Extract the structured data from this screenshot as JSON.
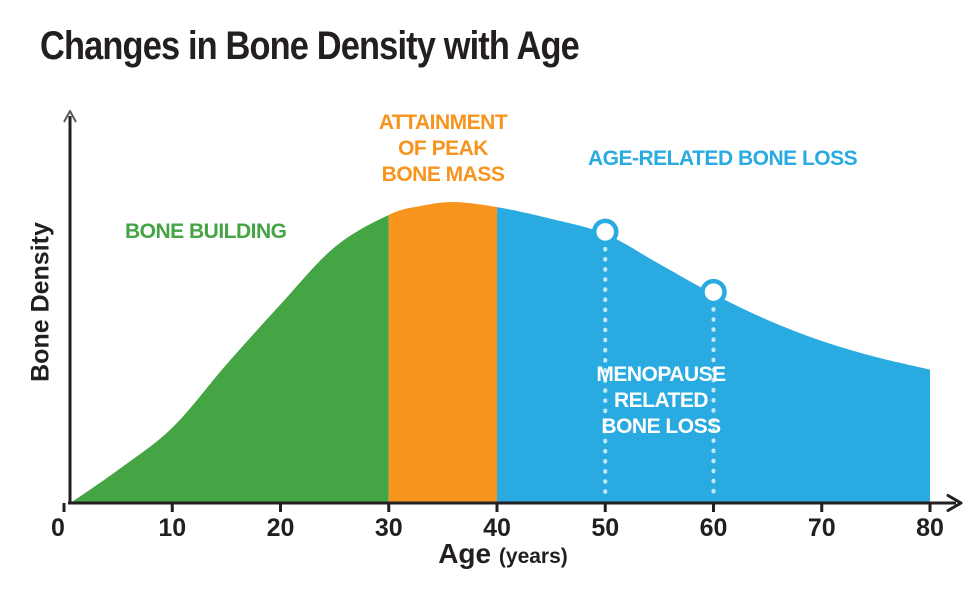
{
  "title": "Changes in Bone Density with Age",
  "colors": {
    "green": "#45A545",
    "orange": "#F7941E",
    "blue": "#29ABE2",
    "ink": "#231F20",
    "white": "#FFFFFF",
    "dotted_line": "rgba(255,255,255,0.72)"
  },
  "labels": {
    "bone_building": "BONE BUILDING",
    "peak_line1": "ATTAINMENT",
    "peak_line2": "OF PEAK",
    "peak_line3": "BONE MASS",
    "age_related": "AGE-RELATED BONE LOSS",
    "menopause_line1": "MENOPAUSE",
    "menopause_line2": "RELATED",
    "menopause_line3": "BONE LOSS",
    "ylabel": "Bone Density",
    "xlabel_main": "Age",
    "xlabel_unit": "(years)"
  },
  "chart_data": {
    "type": "area",
    "title": "Changes in Bone Density with Age",
    "xlabel": "Age (years)",
    "ylabel": "Bone Density",
    "x_ticks": [
      0,
      10,
      20,
      30,
      40,
      50,
      60,
      70,
      80
    ],
    "xlim": [
      0,
      80
    ],
    "ylim_relative_density": [
      0,
      100
    ],
    "grid": false,
    "y_axis_numeric": false,
    "curve": [
      {
        "age": 0.6,
        "density": 0
      },
      {
        "age": 5,
        "density": 11
      },
      {
        "age": 10,
        "density": 25
      },
      {
        "age": 15,
        "density": 46
      },
      {
        "age": 20,
        "density": 66
      },
      {
        "age": 25,
        "density": 85
      },
      {
        "age": 30,
        "density": 95.7
      },
      {
        "age": 33,
        "density": 98.7
      },
      {
        "age": 36,
        "density": 100
      },
      {
        "age": 40,
        "density": 98.3
      },
      {
        "age": 45,
        "density": 94.4
      },
      {
        "age": 50,
        "density": 89.4
      },
      {
        "age": 55,
        "density": 79.4
      },
      {
        "age": 60,
        "density": 69.4
      },
      {
        "age": 65,
        "density": 60.8
      },
      {
        "age": 70,
        "density": 53.8
      },
      {
        "age": 75,
        "density": 48.5
      },
      {
        "age": 80,
        "density": 44.3
      }
    ],
    "segments": [
      {
        "name": "bone-building",
        "label": "BONE BUILDING",
        "age_range": [
          0,
          30
        ],
        "color": "#45A545"
      },
      {
        "name": "peak-bone-mass",
        "label": "ATTAINMENT OF PEAK BONE MASS",
        "age_range": [
          30,
          40
        ],
        "color": "#F7941E"
      },
      {
        "name": "age-related-loss",
        "label": "AGE-RELATED BONE LOSS",
        "age_range": [
          40,
          80
        ],
        "color": "#29ABE2"
      }
    ],
    "markers": [
      {
        "age": 50,
        "density": 89.4
      },
      {
        "age": 60,
        "density": 69.4
      }
    ],
    "annotation": {
      "label": "MENOPAUSE RELATED BONE LOSS",
      "color": "#FFFFFF",
      "between_ages": [
        50,
        60
      ]
    }
  }
}
